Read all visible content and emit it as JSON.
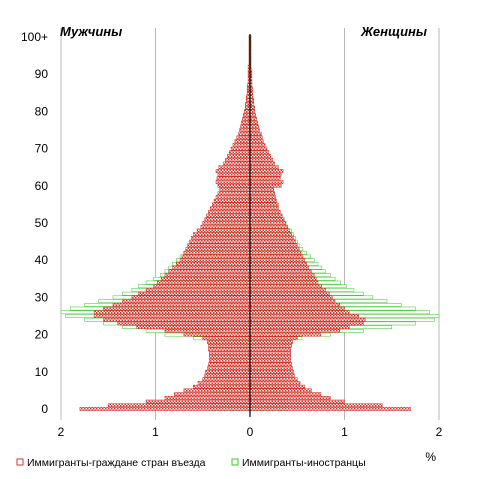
{
  "chart_data": {
    "type": "bar",
    "orientation": "horizontal-population-pyramid",
    "left_title": "Мужчины",
    "right_title": "Женщины",
    "x_unit": "%",
    "xlim": [
      -2,
      2
    ],
    "x_ticks": [
      -2,
      -1,
      0,
      1,
      2
    ],
    "x_tick_labels": [
      "2",
      "1",
      "0",
      "1",
      "2"
    ],
    "y_ticks": [
      0,
      10,
      20,
      30,
      40,
      50,
      60,
      70,
      80,
      90,
      100
    ],
    "y_tick_labels": [
      "0",
      "10",
      "20",
      "30",
      "40",
      "50",
      "60",
      "70",
      "80",
      "90",
      "100+"
    ],
    "grid": "vertical",
    "legend_position": "bottom",
    "series": [
      {
        "name": "Иммигранты-граждане стран въезда",
        "color": "#e0302a",
        "male": [
          1.8,
          1.5,
          1.1,
          0.9,
          0.8,
          0.7,
          0.6,
          0.55,
          0.5,
          0.48,
          0.47,
          0.45,
          0.44,
          0.43,
          0.43,
          0.43,
          0.44,
          0.44,
          0.45,
          0.5,
          0.7,
          0.9,
          1.2,
          1.4,
          1.55,
          1.65,
          1.65,
          1.55,
          1.45,
          1.35,
          1.25,
          1.18,
          1.1,
          1.02,
          0.98,
          0.94,
          0.9,
          0.86,
          0.82,
          0.78,
          0.74,
          0.72,
          0.7,
          0.68,
          0.66,
          0.64,
          0.62,
          0.6,
          0.56,
          0.52,
          0.5,
          0.48,
          0.46,
          0.44,
          0.42,
          0.4,
          0.38,
          0.36,
          0.34,
          0.32,
          0.34,
          0.36,
          0.35,
          0.34,
          0.36,
          0.33,
          0.28,
          0.26,
          0.24,
          0.22,
          0.2,
          0.18,
          0.16,
          0.14,
          0.12,
          0.11,
          0.1,
          0.09,
          0.08,
          0.07,
          0.06,
          0.05,
          0.05,
          0.04,
          0.04,
          0.03,
          0.03,
          0.03,
          0.02,
          0.02,
          0.02,
          0.02,
          0.02,
          0.01,
          0.01,
          0.01,
          0.01,
          0.01,
          0.01,
          0.01,
          0.01
        ],
        "female": [
          1.7,
          1.4,
          1.0,
          0.85,
          0.75,
          0.65,
          0.58,
          0.53,
          0.5,
          0.47,
          0.46,
          0.45,
          0.44,
          0.43,
          0.43,
          0.43,
          0.43,
          0.44,
          0.45,
          0.5,
          0.75,
          0.95,
          1.05,
          1.2,
          1.22,
          1.15,
          1.05,
          1.0,
          0.95,
          0.9,
          0.87,
          0.84,
          0.8,
          0.76,
          0.72,
          0.7,
          0.68,
          0.65,
          0.62,
          0.6,
          0.58,
          0.56,
          0.54,
          0.52,
          0.5,
          0.48,
          0.46,
          0.44,
          0.42,
          0.4,
          0.38,
          0.36,
          0.34,
          0.32,
          0.3,
          0.3,
          0.28,
          0.27,
          0.26,
          0.25,
          0.33,
          0.35,
          0.32,
          0.33,
          0.35,
          0.3,
          0.26,
          0.24,
          0.22,
          0.2,
          0.18,
          0.16,
          0.14,
          0.13,
          0.12,
          0.1,
          0.09,
          0.08,
          0.07,
          0.06,
          0.05,
          0.05,
          0.04,
          0.04,
          0.03,
          0.03,
          0.03,
          0.02,
          0.02,
          0.02,
          0.02,
          0.02,
          0.01,
          0.01,
          0.01,
          0.01,
          0.01,
          0.01,
          0.01,
          0.01,
          0.01
        ]
      },
      {
        "name": "Иммигранты-иностранцы",
        "color": "#33c81e",
        "male": [
          0.42,
          0.42,
          0.42,
          0.42,
          0.41,
          0.41,
          0.41,
          0.41,
          0.4,
          0.4,
          0.4,
          0.4,
          0.4,
          0.4,
          0.4,
          0.4,
          0.41,
          0.42,
          0.45,
          0.6,
          0.9,
          1.1,
          1.35,
          1.55,
          1.75,
          1.95,
          2.0,
          1.9,
          1.75,
          1.6,
          1.45,
          1.35,
          1.25,
          1.18,
          1.1,
          1.02,
          0.95,
          0.9,
          0.86,
          0.82,
          0.78,
          0.74,
          0.7,
          0.66,
          0.62,
          0.58,
          0.54,
          0.5,
          0.46,
          0.42,
          0.4,
          0.38,
          0.36,
          0.34,
          0.32,
          0.3,
          0.28,
          0.26,
          0.24,
          0.22,
          0.2,
          0.19,
          0.18,
          0.17,
          0.16,
          0.15,
          0.14,
          0.13,
          0.12,
          0.11,
          0.1,
          0.09,
          0.08,
          0.08,
          0.07,
          0.06,
          0.05,
          0.05,
          0.04,
          0.04,
          0.03,
          0.03,
          0.03,
          0.02,
          0.02,
          0.02,
          0.02,
          0.02,
          0.01,
          0.01,
          0.01,
          0.01,
          0.01,
          0.01,
          0.01,
          0.01,
          0.01,
          0.01,
          0.01,
          0.01,
          0.01
        ],
        "female": [
          0.4,
          0.4,
          0.4,
          0.4,
          0.39,
          0.39,
          0.39,
          0.39,
          0.38,
          0.38,
          0.38,
          0.38,
          0.38,
          0.38,
          0.38,
          0.38,
          0.39,
          0.4,
          0.42,
          0.55,
          0.85,
          1.2,
          1.5,
          1.75,
          1.95,
          2.0,
          1.9,
          1.75,
          1.6,
          1.45,
          1.3,
          1.2,
          1.1,
          1.02,
          0.96,
          0.9,
          0.85,
          0.8,
          0.76,
          0.72,
          0.68,
          0.64,
          0.6,
          0.56,
          0.52,
          0.5,
          0.48,
          0.46,
          0.44,
          0.4,
          0.38,
          0.36,
          0.34,
          0.32,
          0.3,
          0.28,
          0.26,
          0.25,
          0.24,
          0.23,
          0.22,
          0.21,
          0.2,
          0.19,
          0.18,
          0.17,
          0.15,
          0.14,
          0.13,
          0.12,
          0.11,
          0.1,
          0.09,
          0.08,
          0.07,
          0.06,
          0.06,
          0.05,
          0.05,
          0.04,
          0.04,
          0.03,
          0.03,
          0.03,
          0.02,
          0.02,
          0.02,
          0.02,
          0.02,
          0.01,
          0.01,
          0.01,
          0.01,
          0.01,
          0.01,
          0.01,
          0.01,
          0.01,
          0.01,
          0.01,
          0.01
        ]
      }
    ]
  }
}
